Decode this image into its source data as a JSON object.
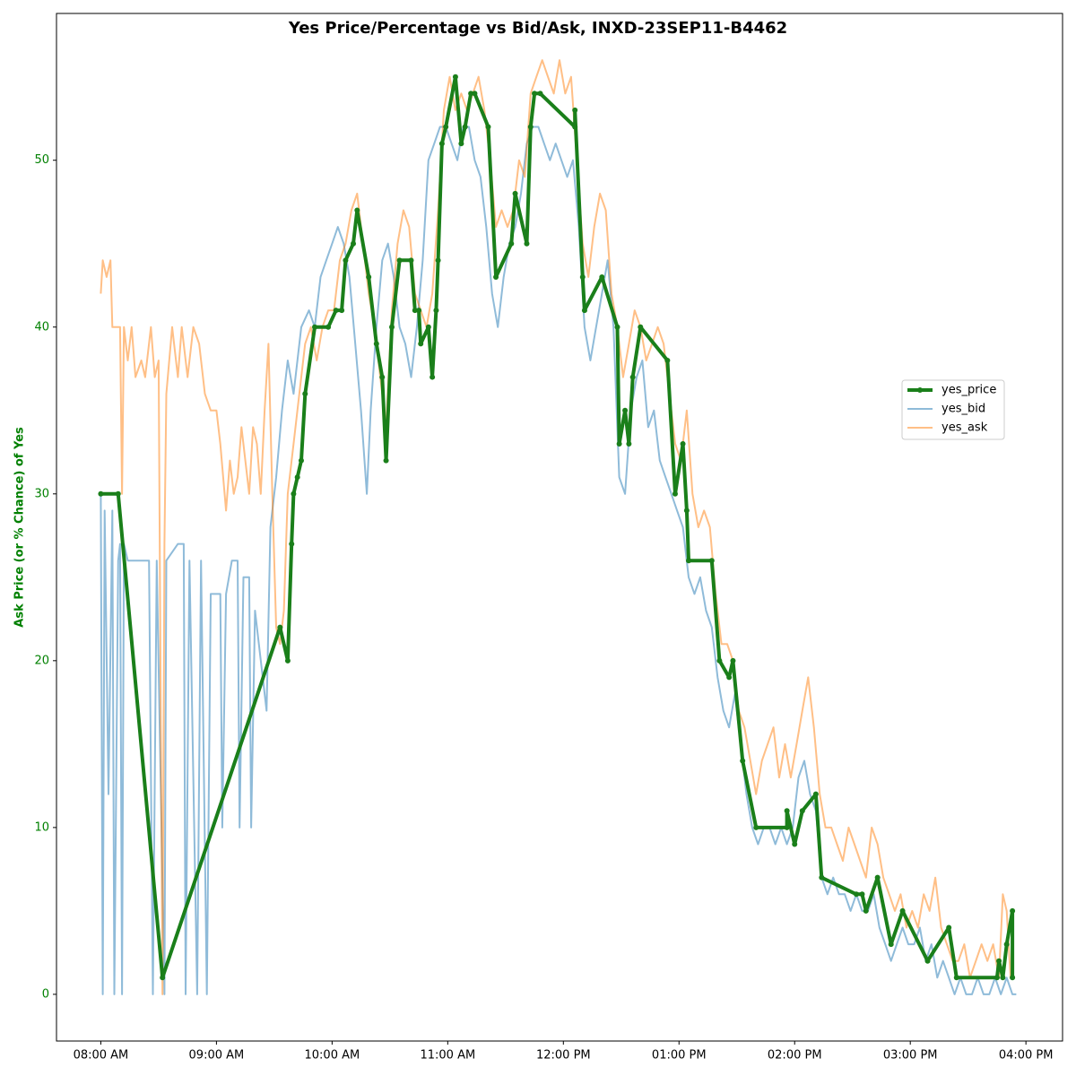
{
  "chart_data": {
    "type": "line",
    "title": "Yes Price/Percentage vs Bid/Ask, INXD-23SEP11-B4462",
    "y_label": "Ask Price (or % Chance) of Yes",
    "xlim": [
      457,
      979
    ],
    "ylim": [
      -2.8,
      58.8
    ],
    "xticks": [
      {
        "value": 480,
        "label": "08:00 AM"
      },
      {
        "value": 540,
        "label": "09:00 AM"
      },
      {
        "value": 600,
        "label": "10:00 AM"
      },
      {
        "value": 660,
        "label": "11:00 AM"
      },
      {
        "value": 720,
        "label": "12:00 PM"
      },
      {
        "value": 780,
        "label": "01:00 PM"
      },
      {
        "value": 840,
        "label": "02:00 PM"
      },
      {
        "value": 900,
        "label": "03:00 PM"
      },
      {
        "value": 960,
        "label": "04:00 PM"
      }
    ],
    "yticks": [
      0,
      10,
      20,
      30,
      40,
      50
    ],
    "legend": "center right",
    "series": [
      {
        "name": "yes_price",
        "color": "#1a7f1a",
        "markers": true,
        "x": [
          480,
          489,
          512,
          573,
          577,
          579,
          580,
          582,
          584,
          586,
          591,
          598,
          602,
          605,
          607,
          611,
          613,
          619,
          623,
          626,
          628,
          631,
          635,
          641,
          643,
          645,
          646,
          650,
          652,
          654,
          655,
          657,
          659,
          664,
          667,
          669,
          672,
          674,
          681,
          685,
          693,
          695,
          701,
          703,
          705,
          708,
          726,
          726,
          730,
          731,
          740,
          748,
          749,
          752,
          754,
          756,
          760,
          774,
          778,
          782,
          784,
          785,
          797,
          801,
          806,
          808,
          813,
          820,
          836,
          836,
          840,
          844,
          851,
          854,
          872,
          875,
          877,
          883,
          890,
          896,
          909,
          920,
          924,
          945,
          946,
          948,
          950,
          953,
          953
        ],
        "values": [
          30,
          30,
          1,
          22,
          20,
          27,
          30,
          31,
          32,
          36,
          40,
          40,
          41,
          41,
          44,
          45,
          47,
          43,
          39,
          37,
          32,
          40,
          44,
          44,
          41,
          41,
          39,
          40,
          37,
          41,
          44,
          51,
          52,
          55,
          51,
          52,
          54,
          54,
          52,
          43,
          45,
          48,
          45,
          52,
          54,
          54,
          52,
          53,
          43,
          41,
          43,
          40,
          33,
          35,
          33,
          37,
          40,
          38,
          30,
          33,
          29,
          26,
          26,
          20,
          19,
          20,
          14,
          10,
          10,
          11,
          9,
          11,
          12,
          7,
          6,
          6,
          5,
          7,
          3,
          5,
          2,
          4,
          1,
          1,
          2,
          1,
          3,
          5,
          1
        ]
      },
      {
        "name": "yes_bid",
        "color": "#1f77b4",
        "x": [
          480,
          481,
          482,
          484,
          486,
          487,
          489,
          490,
          491,
          492,
          494,
          505,
          507,
          509,
          513,
          514,
          520,
          523,
          524,
          526,
          530,
          532,
          535,
          537,
          542,
          543,
          545,
          548,
          551,
          552,
          554,
          557,
          558,
          560,
          562,
          564,
          566,
          568,
          571,
          574,
          577,
          580,
          584,
          588,
          591,
          594,
          597,
          600,
          603,
          606,
          609,
          612,
          615,
          618,
          620,
          623,
          626,
          629,
          632,
          635,
          638,
          641,
          644,
          647,
          650,
          653,
          656,
          659,
          662,
          665,
          668,
          671,
          674,
          677,
          680,
          683,
          686,
          689,
          692,
          695,
          698,
          701,
          704,
          707,
          710,
          713,
          716,
          719,
          722,
          725,
          728,
          731,
          734,
          737,
          740,
          743,
          746,
          749,
          752,
          755,
          758,
          761,
          764,
          767,
          770,
          773,
          776,
          779,
          782,
          785,
          788,
          791,
          794,
          797,
          800,
          803,
          806,
          809,
          812,
          815,
          818,
          821,
          824,
          827,
          830,
          833,
          836,
          839,
          842,
          845,
          848,
          851,
          854,
          857,
          860,
          863,
          866,
          869,
          872,
          875,
          878,
          881,
          884,
          887,
          890,
          893,
          896,
          899,
          902,
          905,
          908,
          911,
          914,
          917,
          920,
          923,
          926,
          929,
          932,
          935,
          938,
          941,
          944,
          947,
          950,
          953,
          955
        ],
        "values": [
          30,
          0,
          29,
          12,
          29,
          0,
          26,
          27,
          0,
          27,
          26,
          26,
          0,
          26,
          0,
          26,
          27,
          27,
          0,
          26,
          0,
          26,
          0,
          24,
          24,
          10,
          24,
          26,
          26,
          10,
          25,
          25,
          10,
          23,
          21,
          19,
          17,
          28,
          31,
          35,
          38,
          36,
          40,
          41,
          40,
          43,
          44,
          45,
          46,
          45,
          43,
          39,
          35,
          30,
          35,
          40,
          44,
          45,
          43,
          40,
          39,
          37,
          40,
          44,
          50,
          51,
          52,
          52,
          51,
          50,
          52,
          52,
          50,
          49,
          46,
          42,
          40,
          43,
          45,
          46,
          48,
          51,
          52,
          52,
          51,
          50,
          51,
          50,
          49,
          50,
          46,
          40,
          38,
          40,
          42,
          44,
          40,
          31,
          30,
          35,
          37,
          38,
          34,
          35,
          32,
          31,
          30,
          29,
          28,
          25,
          24,
          25,
          23,
          22,
          19,
          17,
          16,
          18,
          15,
          12,
          10,
          9,
          10,
          10,
          9,
          10,
          9,
          10,
          13,
          14,
          12,
          11,
          7,
          6,
          7,
          6,
          6,
          5,
          6,
          5,
          5,
          6,
          4,
          3,
          2,
          3,
          4,
          3,
          3,
          4,
          2,
          3,
          1,
          2,
          1,
          0,
          1,
          0,
          0,
          1,
          0,
          0,
          1,
          0,
          1,
          0,
          0
        ]
      },
      {
        "name": "yes_ask",
        "color": "#ff7f0e",
        "x": [
          480,
          481,
          483,
          485,
          486,
          490,
          491,
          492,
          494,
          496,
          498,
          501,
          503,
          506,
          508,
          510,
          512,
          513,
          514,
          517,
          520,
          522,
          525,
          528,
          531,
          534,
          537,
          540,
          542,
          545,
          547,
          549,
          551,
          553,
          555,
          557,
          559,
          561,
          563,
          565,
          567,
          569,
          571,
          573,
          575,
          577,
          580,
          583,
          586,
          589,
          592,
          595,
          598,
          601,
          604,
          607,
          610,
          613,
          616,
          619,
          622,
          625,
          628,
          631,
          634,
          637,
          640,
          643,
          646,
          649,
          652,
          655,
          658,
          661,
          664,
          667,
          670,
          673,
          676,
          679,
          682,
          685,
          688,
          691,
          694,
          697,
          700,
          703,
          706,
          709,
          712,
          715,
          718,
          721,
          724,
          727,
          730,
          733,
          736,
          739,
          742,
          745,
          748,
          751,
          754,
          757,
          760,
          763,
          766,
          769,
          772,
          775,
          778,
          781,
          784,
          787,
          790,
          793,
          796,
          799,
          802,
          805,
          808,
          811,
          814,
          817,
          820,
          823,
          826,
          829,
          832,
          835,
          838,
          841,
          844,
          847,
          850,
          853,
          856,
          859,
          862,
          865,
          868,
          871,
          874,
          877,
          880,
          883,
          886,
          889,
          892,
          895,
          898,
          901,
          904,
          907,
          910,
          913,
          916,
          919,
          922,
          925,
          928,
          931,
          934,
          937,
          940,
          943,
          946,
          948,
          950,
          952,
          954
        ],
        "values": [
          42,
          44,
          43,
          44,
          40,
          40,
          30,
          40,
          38,
          40,
          37,
          38,
          37,
          40,
          37,
          38,
          0,
          27,
          36,
          40,
          37,
          40,
          37,
          40,
          39,
          36,
          35,
          35,
          33,
          29,
          32,
          30,
          31,
          34,
          32,
          30,
          34,
          33,
          30,
          35,
          39,
          30,
          22,
          21,
          23,
          30,
          33,
          36,
          39,
          40,
          38,
          40,
          41,
          41,
          44,
          45,
          47,
          48,
          45,
          42,
          40,
          37,
          34,
          41,
          45,
          47,
          46,
          42,
          41,
          40,
          42,
          47,
          53,
          55,
          53,
          54,
          53,
          54,
          55,
          53,
          50,
          46,
          47,
          46,
          47,
          50,
          49,
          54,
          55,
          56,
          55,
          54,
          56,
          54,
          55,
          50,
          45,
          43,
          46,
          48,
          47,
          42,
          40,
          37,
          39,
          41,
          40,
          38,
          39,
          40,
          39,
          36,
          33,
          32,
          35,
          30,
          28,
          29,
          28,
          24,
          21,
          21,
          20,
          17,
          16,
          14,
          12,
          14,
          15,
          16,
          13,
          15,
          13,
          15,
          17,
          19,
          16,
          12,
          10,
          10,
          9,
          8,
          10,
          9,
          8,
          7,
          10,
          9,
          7,
          6,
          5,
          6,
          4,
          5,
          4,
          6,
          5,
          7,
          4,
          3,
          2,
          2,
          3,
          1,
          2,
          3,
          2,
          3,
          1,
          6,
          5,
          1,
          1
        ]
      }
    ]
  }
}
